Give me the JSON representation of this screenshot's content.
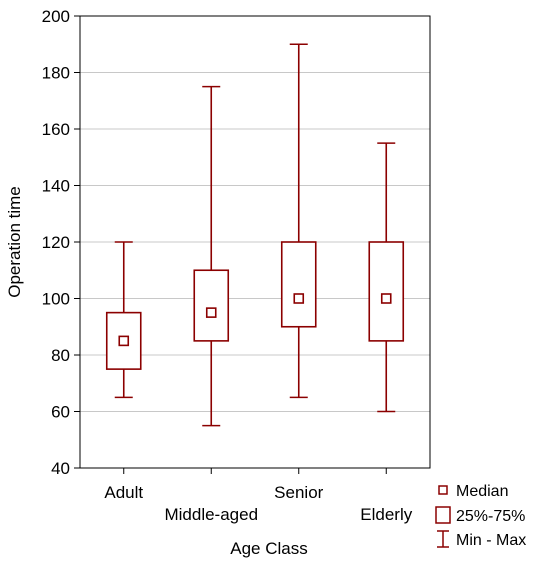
{
  "chart_data": {
    "type": "box",
    "xlabel": "Age Class",
    "ylabel": "Operation time",
    "ylim": [
      40,
      200
    ],
    "yticks": [
      40,
      60,
      80,
      100,
      120,
      140,
      160,
      180,
      200
    ],
    "grid": true,
    "categories": [
      "Adult",
      "Middle-aged",
      "Senior",
      "Elderly"
    ],
    "boxes": [
      {
        "category": "Adult",
        "min": 65,
        "q1": 75,
        "median": 85,
        "q3": 95,
        "max": 120
      },
      {
        "category": "Middle-aged",
        "min": 55,
        "q1": 85,
        "median": 95,
        "q3": 110,
        "max": 175
      },
      {
        "category": "Senior",
        "min": 65,
        "q1": 90,
        "median": 100,
        "q3": 120,
        "max": 190
      },
      {
        "category": "Elderly",
        "min": 60,
        "q1": 85,
        "median": 100,
        "q3": 120,
        "max": 155
      }
    ],
    "legend": {
      "position": "bottom-right",
      "entries": [
        {
          "symbol": "median-square",
          "label": "Median"
        },
        {
          "symbol": "box",
          "label": "25%-75%"
        },
        {
          "symbol": "whisker",
          "label": "Min - Max"
        }
      ]
    },
    "colors": {
      "series": "#8b0000",
      "grid": "#c8c8c8",
      "frame": "#000000"
    }
  }
}
